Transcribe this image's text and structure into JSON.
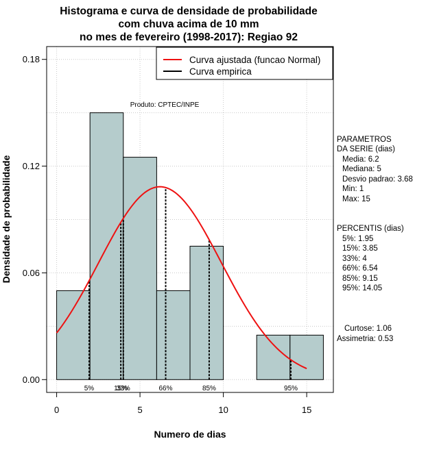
{
  "chart_data": {
    "type": "bar",
    "title": [
      "Histograma e curva de densidade de probabilidade",
      "com chuva acima de 10 mm",
      "no mes de fevereiro (1998-2017): Regiao 92"
    ],
    "xlabel": "Numero de dias",
    "ylabel": "Densidade de probabilidade",
    "xlim": [
      -0.6,
      16.6
    ],
    "ylim": [
      -0.0072,
      0.1872
    ],
    "xticks": [
      0,
      5,
      10,
      15
    ],
    "xtick_labels": [
      "0",
      "5",
      "10",
      "15"
    ],
    "yticks": [
      0.0,
      0.06,
      0.12,
      0.18
    ],
    "ytick_labels": [
      "0.00",
      "0.06",
      "0.12",
      "0.18"
    ],
    "grid": true,
    "bins": [
      {
        "x0": 0,
        "x1": 2,
        "density": 0.05
      },
      {
        "x0": 2,
        "x1": 4,
        "density": 0.15
      },
      {
        "x0": 4,
        "x1": 6,
        "density": 0.125
      },
      {
        "x0": 6,
        "x1": 8,
        "density": 0.05
      },
      {
        "x0": 8,
        "x1": 10,
        "density": 0.075
      },
      {
        "x0": 10,
        "x1": 12,
        "density": 0.0
      },
      {
        "x0": 12,
        "x1": 14,
        "density": 0.025
      },
      {
        "x0": 14,
        "x1": 16,
        "density": 0.025
      }
    ],
    "bar_color": "#b5cccc",
    "normal_curve": {
      "name": "Curva ajustada (funcao Normal)",
      "color": "#ee1111",
      "mean": 6.2,
      "sd": 3.68,
      "x_range": [
        0,
        15
      ]
    },
    "empirical_curve": {
      "name": "Curva empirica",
      "color": "#000000"
    },
    "percentile_lines": [
      {
        "label": "5%",
        "x": 1.95
      },
      {
        "label": "15%",
        "x": 3.85
      },
      {
        "label": "33%",
        "x": 4.0
      },
      {
        "label": "66%",
        "x": 6.54
      },
      {
        "label": "85%",
        "x": 9.15
      },
      {
        "label": "95%",
        "x": 14.05
      }
    ],
    "annotation": "Produto: CPTEC/INPE",
    "legend_position": "top-right"
  },
  "side_panel": {
    "params_title": [
      "PARAMETROS",
      "DA SERIE (dias)"
    ],
    "params": [
      "Media: 6.2",
      "Mediana: 5",
      "Desvio padrao: 3.68",
      "Min: 1",
      "Max: 15"
    ],
    "percentis_title": "PERCENTIS (dias)",
    "percentis": [
      "5%: 1.95",
      "15%: 3.85",
      "33%: 4",
      "66%: 6.54",
      "85%: 9.15",
      "95%: 14.05"
    ],
    "shape": [
      "Curtose: 1.06",
      "Assimetria: 0.53"
    ]
  }
}
